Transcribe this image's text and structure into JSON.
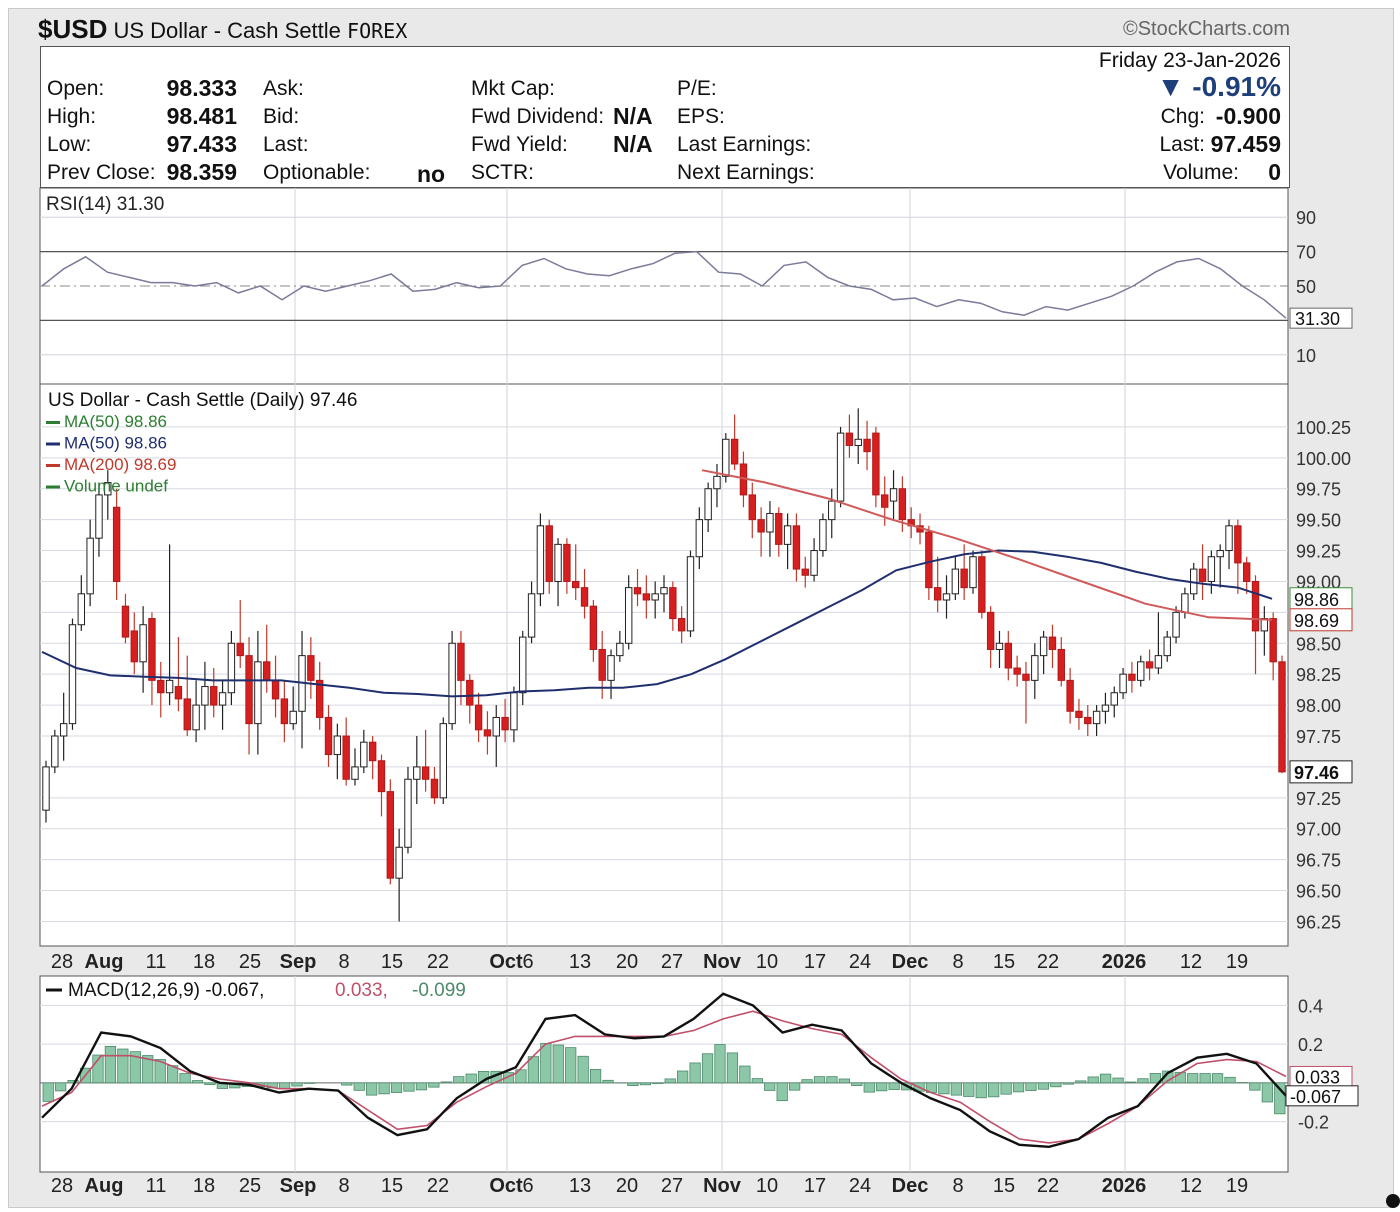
{
  "header": {
    "symbol": "$USD",
    "name": "US Dollar - Cash Settle",
    "exchange": "FOREX",
    "brand": "©StockCharts.com"
  },
  "quote": {
    "date": "Friday  23-Jan-2026",
    "change_pct": "-0.91%",
    "labels": {
      "open": "Open:",
      "high": "High:",
      "low": "Low:",
      "prev_close": "Prev Close:",
      "ask": "Ask:",
      "bid": "Bid:",
      "last": "Last:",
      "optionable": "Optionable:",
      "mkt_cap": "Mkt Cap:",
      "fwd_dividend": "Fwd Dividend:",
      "fwd_yield": "Fwd Yield:",
      "sctr": "SCTR:",
      "pe": "P/E:",
      "eps": "EPS:",
      "last_earnings": "Last Earnings:",
      "next_earnings": "Next Earnings:",
      "chg": "Chg:",
      "last_r": "Last:",
      "volume": "Volume:"
    },
    "values": {
      "open": "98.333",
      "high": "98.481",
      "low": "97.433",
      "prev_close": "98.359",
      "optionable": "no",
      "fwd_dividend": "N/A",
      "fwd_yield": "N/A",
      "chg": "-0.900",
      "last": "97.459",
      "volume": "0"
    }
  },
  "rsi": {
    "label": "RSI(14) 31.30",
    "ticks": [
      "90",
      "70",
      "50",
      "10"
    ],
    "tick_values": [
      90,
      70,
      50,
      10
    ],
    "current": "31.30",
    "current_value": 31.3,
    "color": "#7a7a9a"
  },
  "price": {
    "title": "US Dollar - Cash Settle (Daily) 97.46",
    "legend": [
      {
        "text": "MA(50) 98.86",
        "color": "#2e7d32"
      },
      {
        "text": "MA(50) 98.86",
        "color": "#1f2f6e"
      },
      {
        "text": "MA(200) 98.69",
        "color": "#c0392b"
      },
      {
        "text": "Volume undef",
        "color": "#2e7d32"
      }
    ],
    "ticks": [
      "100.25",
      "100.00",
      "99.75",
      "99.50",
      "99.25",
      "99.00",
      "98.75",
      "98.50",
      "98.25",
      "98.00",
      "97.75",
      "97.50",
      "97.25",
      "97.00",
      "96.75",
      "96.50",
      "96.25"
    ],
    "tick_values": [
      100.25,
      100.0,
      99.75,
      99.5,
      99.25,
      99.0,
      98.75,
      98.5,
      98.25,
      98.0,
      97.75,
      97.5,
      97.25,
      97.0,
      96.75,
      96.5,
      96.25
    ],
    "last_label": "97.46",
    "ma50_label": "98.86",
    "ma200_label": "98.69"
  },
  "macd": {
    "label": "MACD(12,26,9) -0.067,",
    "signal": "0.033,",
    "hist": "-0.099",
    "ticks": [
      "0.4",
      "0.2",
      "-0.2"
    ],
    "tick_values": [
      0.4,
      0.2,
      -0.2
    ],
    "macd_label": "-0.067",
    "signal_label": "0.033"
  },
  "xaxis": {
    "labels": [
      "28",
      "Aug",
      "11",
      "18",
      "25",
      "Sep",
      "8",
      "15",
      "22",
      "Oct",
      "6",
      "13",
      "20",
      "27",
      "Nov",
      "10",
      "17",
      "24",
      "Dec",
      "8",
      "15",
      "22",
      "2026",
      "12",
      "19"
    ],
    "bold": [
      "Aug",
      "Sep",
      "Oct",
      "Nov",
      "Dec",
      "2026"
    ]
  },
  "chart_data": {
    "type": "candlestick",
    "symbol": "$USD",
    "period": "Daily",
    "ylim": [
      96.1,
      100.5
    ],
    "candles": [
      [
        97.15,
        97.55,
        97.05,
        97.5
      ],
      [
        97.5,
        97.8,
        97.45,
        97.75
      ],
      [
        97.75,
        98.1,
        97.55,
        97.85
      ],
      [
        97.85,
        98.7,
        97.8,
        98.65
      ],
      [
        98.65,
        99.05,
        98.6,
        98.9
      ],
      [
        98.9,
        99.5,
        98.8,
        99.35
      ],
      [
        99.35,
        99.8,
        99.2,
        99.7
      ],
      [
        99.7,
        99.9,
        99.5,
        99.8
      ],
      [
        99.6,
        99.75,
        98.85,
        99.0
      ],
      [
        98.8,
        98.9,
        98.5,
        98.55
      ],
      [
        98.6,
        98.75,
        98.25,
        98.35
      ],
      [
        98.35,
        98.8,
        98.1,
        98.65
      ],
      [
        98.7,
        98.75,
        98.0,
        98.2
      ],
      [
        98.2,
        98.35,
        97.9,
        98.1
      ],
      [
        98.1,
        99.3,
        98.0,
        98.2
      ],
      [
        98.15,
        98.55,
        97.95,
        98.05
      ],
      [
        98.05,
        98.4,
        97.75,
        97.8
      ],
      [
        97.8,
        98.2,
        97.7,
        98.0
      ],
      [
        98.0,
        98.35,
        97.8,
        98.15
      ],
      [
        98.15,
        98.3,
        97.9,
        98.0
      ],
      [
        98.0,
        98.2,
        97.8,
        98.1
      ],
      [
        98.1,
        98.6,
        98.0,
        98.5
      ],
      [
        98.5,
        98.85,
        98.3,
        98.4
      ],
      [
        98.4,
        98.55,
        97.6,
        97.85
      ],
      [
        97.85,
        98.6,
        97.6,
        98.35
      ],
      [
        98.35,
        98.65,
        98.1,
        98.2
      ],
      [
        98.2,
        98.4,
        97.9,
        98.05
      ],
      [
        98.05,
        98.2,
        97.7,
        97.85
      ],
      [
        97.85,
        98.15,
        97.8,
        97.95
      ],
      [
        97.95,
        98.6,
        97.65,
        98.4
      ],
      [
        98.4,
        98.55,
        98.05,
        98.2
      ],
      [
        98.2,
        98.35,
        97.8,
        97.9
      ],
      [
        97.9,
        98.0,
        97.5,
        97.6
      ],
      [
        97.6,
        97.85,
        97.4,
        97.75
      ],
      [
        97.75,
        97.9,
        97.35,
        97.4
      ],
      [
        97.4,
        97.65,
        97.35,
        97.5
      ],
      [
        97.5,
        97.8,
        97.45,
        97.7
      ],
      [
        97.7,
        97.75,
        97.4,
        97.55
      ],
      [
        97.55,
        97.6,
        97.1,
        97.3
      ],
      [
        97.3,
        97.4,
        96.55,
        96.6
      ],
      [
        96.6,
        97.0,
        96.25,
        96.85
      ],
      [
        96.85,
        97.5,
        96.8,
        97.4
      ],
      [
        97.4,
        97.75,
        97.2,
        97.5
      ],
      [
        97.5,
        97.8,
        97.3,
        97.4
      ],
      [
        97.4,
        97.5,
        97.2,
        97.25
      ],
      [
        97.25,
        97.9,
        97.2,
        97.85
      ],
      [
        97.85,
        98.6,
        97.8,
        98.5
      ],
      [
        98.5,
        98.6,
        98.0,
        98.2
      ],
      [
        98.2,
        98.25,
        97.85,
        98.0
      ],
      [
        98.0,
        98.1,
        97.7,
        97.8
      ],
      [
        97.8,
        97.95,
        97.6,
        97.75
      ],
      [
        97.75,
        98.0,
        97.5,
        97.9
      ],
      [
        97.9,
        98.05,
        97.7,
        97.8
      ],
      [
        97.8,
        98.15,
        97.7,
        98.1
      ],
      [
        98.1,
        98.6,
        98.0,
        98.55
      ],
      [
        98.55,
        99.0,
        98.5,
        98.9
      ],
      [
        98.9,
        99.55,
        98.8,
        99.45
      ],
      [
        99.45,
        99.5,
        98.9,
        99.0
      ],
      [
        99.0,
        99.35,
        98.8,
        99.3
      ],
      [
        99.3,
        99.35,
        98.9,
        99.0
      ],
      [
        99.0,
        99.3,
        98.85,
        98.95
      ],
      [
        98.95,
        99.1,
        98.7,
        98.8
      ],
      [
        98.8,
        98.85,
        98.35,
        98.45
      ],
      [
        98.45,
        98.6,
        98.05,
        98.2
      ],
      [
        98.2,
        98.45,
        98.05,
        98.4
      ],
      [
        98.4,
        98.6,
        98.35,
        98.5
      ],
      [
        98.5,
        99.05,
        98.45,
        98.95
      ],
      [
        98.95,
        99.1,
        98.8,
        98.9
      ],
      [
        98.9,
        99.05,
        98.7,
        98.85
      ],
      [
        98.85,
        99.0,
        98.7,
        98.9
      ],
      [
        98.9,
        99.05,
        98.75,
        98.95
      ],
      [
        98.95,
        99.0,
        98.6,
        98.7
      ],
      [
        98.7,
        98.8,
        98.5,
        98.6
      ],
      [
        98.6,
        99.25,
        98.55,
        99.2
      ],
      [
        99.2,
        99.6,
        99.1,
        99.5
      ],
      [
        99.5,
        99.8,
        99.4,
        99.75
      ],
      [
        99.75,
        99.95,
        99.6,
        99.85
      ],
      [
        99.85,
        100.2,
        99.8,
        100.15
      ],
      [
        100.15,
        100.35,
        99.9,
        99.95
      ],
      [
        99.95,
        100.05,
        99.6,
        99.7
      ],
      [
        99.7,
        99.8,
        99.35,
        99.5
      ],
      [
        99.5,
        99.6,
        99.2,
        99.4
      ],
      [
        99.4,
        99.65,
        99.2,
        99.55
      ],
      [
        99.55,
        99.6,
        99.2,
        99.3
      ],
      [
        99.3,
        99.55,
        99.1,
        99.45
      ],
      [
        99.45,
        99.55,
        99.0,
        99.1
      ],
      [
        99.1,
        99.2,
        98.95,
        99.05
      ],
      [
        99.05,
        99.35,
        99.0,
        99.25
      ],
      [
        99.25,
        99.55,
        99.2,
        99.5
      ],
      [
        99.5,
        99.75,
        99.35,
        99.65
      ],
      [
        99.65,
        100.25,
        99.6,
        100.2
      ],
      [
        100.2,
        100.35,
        100.0,
        100.1
      ],
      [
        100.1,
        100.4,
        99.95,
        100.15
      ],
      [
        100.15,
        100.3,
        99.9,
        100.05
      ],
      [
        100.2,
        100.25,
        99.6,
        99.7
      ],
      [
        99.7,
        99.85,
        99.45,
        99.6
      ],
      [
        99.65,
        99.9,
        99.5,
        99.75
      ],
      [
        99.75,
        99.85,
        99.4,
        99.5
      ],
      [
        99.5,
        99.6,
        99.35,
        99.45
      ],
      [
        99.45,
        99.55,
        99.3,
        99.4
      ],
      [
        99.4,
        99.45,
        98.85,
        98.95
      ],
      [
        98.95,
        99.2,
        98.75,
        98.85
      ],
      [
        98.85,
        99.05,
        98.7,
        98.9
      ],
      [
        98.9,
        99.2,
        98.85,
        99.1
      ],
      [
        99.1,
        99.3,
        98.85,
        98.95
      ],
      [
        98.95,
        99.25,
        98.9,
        99.2
      ],
      [
        99.2,
        99.25,
        98.7,
        98.75
      ],
      [
        98.75,
        98.8,
        98.3,
        98.45
      ],
      [
        98.45,
        98.6,
        98.3,
        98.5
      ],
      [
        98.5,
        98.6,
        98.2,
        98.3
      ],
      [
        98.3,
        98.4,
        98.15,
        98.25
      ],
      [
        98.25,
        98.35,
        97.85,
        98.2
      ],
      [
        98.2,
        98.5,
        98.05,
        98.4
      ],
      [
        98.4,
        98.6,
        98.25,
        98.55
      ],
      [
        98.55,
        98.65,
        98.3,
        98.45
      ],
      [
        98.45,
        98.55,
        98.15,
        98.2
      ],
      [
        98.2,
        98.3,
        97.85,
        97.95
      ],
      [
        97.95,
        98.05,
        97.8,
        97.9
      ],
      [
        97.9,
        98.0,
        97.75,
        97.85
      ],
      [
        97.85,
        98.0,
        97.75,
        97.95
      ],
      [
        97.95,
        98.1,
        97.85,
        98.0
      ],
      [
        98.0,
        98.15,
        97.9,
        98.1
      ],
      [
        98.1,
        98.3,
        98.05,
        98.25
      ],
      [
        98.25,
        98.35,
        98.1,
        98.2
      ],
      [
        98.2,
        98.4,
        98.15,
        98.35
      ],
      [
        98.35,
        98.45,
        98.2,
        98.3
      ],
      [
        98.3,
        98.75,
        98.25,
        98.4
      ],
      [
        98.4,
        98.6,
        98.35,
        98.55
      ],
      [
        98.55,
        98.8,
        98.5,
        98.75
      ],
      [
        98.75,
        98.95,
        98.7,
        98.9
      ],
      [
        98.9,
        99.15,
        98.85,
        99.1
      ],
      [
        99.1,
        99.3,
        98.85,
        99.0
      ],
      [
        99.0,
        99.25,
        98.9,
        99.2
      ],
      [
        99.2,
        99.3,
        98.95,
        99.25
      ],
      [
        99.25,
        99.5,
        99.1,
        99.45
      ],
      [
        99.45,
        99.5,
        98.9,
        99.15
      ],
      [
        99.15,
        99.2,
        98.9,
        99.0
      ],
      [
        99.0,
        99.05,
        98.25,
        98.6
      ],
      [
        98.6,
        98.8,
        98.4,
        98.7
      ],
      [
        98.7,
        98.75,
        98.2,
        98.35
      ],
      [
        98.35,
        98.4,
        97.45,
        97.46
      ]
    ],
    "ma50": [
      98.43,
      98.3,
      98.24,
      98.23,
      98.22,
      98.2,
      98.2,
      98.2,
      98.17,
      98.14,
      98.1,
      98.09,
      98.07,
      98.08,
      98.11,
      98.12,
      98.14,
      98.14,
      98.17,
      98.25,
      98.37,
      98.51,
      98.65,
      98.79,
      98.93,
      99.09,
      99.16,
      99.22,
      99.25,
      99.24,
      99.2,
      99.15,
      99.08,
      99.02,
      98.98,
      98.95,
      98.86
    ],
    "ma200": [
      99.9,
      99.8,
      99.67,
      99.5,
      99.35,
      99.18,
      99.0,
      98.82,
      98.71,
      98.69
    ],
    "rsi": [
      50,
      60,
      67,
      58,
      55,
      52,
      52,
      50,
      52,
      46,
      50,
      42,
      50,
      47,
      50,
      53,
      57,
      47,
      48,
      52,
      49,
      50,
      62,
      66,
      60,
      57,
      56,
      60,
      63,
      69,
      70,
      58,
      57,
      50,
      62,
      64,
      55,
      50,
      48,
      42,
      43,
      38,
      42,
      40,
      35,
      33,
      38,
      36,
      40,
      44,
      50,
      58,
      64,
      66,
      60,
      50,
      42,
      31.3
    ],
    "macd": [
      -0.18,
      -0.03,
      0.26,
      0.24,
      0.18,
      0.06,
      0.0,
      -0.01,
      -0.05,
      -0.03,
      -0.04,
      -0.18,
      -0.27,
      -0.24,
      -0.08,
      0.02,
      0.08,
      0.33,
      0.35,
      0.25,
      0.23,
      0.24,
      0.33,
      0.46,
      0.4,
      0.26,
      0.3,
      0.27,
      0.1,
      0.0,
      -0.08,
      -0.14,
      -0.25,
      -0.32,
      -0.33,
      -0.29,
      -0.18,
      -0.12,
      0.05,
      0.13,
      0.15,
      0.1,
      -0.067
    ],
    "signal": [
      -0.12,
      -0.05,
      0.14,
      0.14,
      0.11,
      0.05,
      0.02,
      0.0,
      -0.03,
      -0.03,
      -0.04,
      -0.14,
      -0.24,
      -0.22,
      -0.1,
      -0.02,
      0.05,
      0.2,
      0.24,
      0.24,
      0.24,
      0.24,
      0.27,
      0.33,
      0.37,
      0.32,
      0.28,
      0.25,
      0.13,
      0.02,
      -0.05,
      -0.1,
      -0.2,
      -0.29,
      -0.31,
      -0.29,
      -0.21,
      -0.12,
      0.01,
      0.1,
      0.12,
      0.11,
      0.033
    ]
  }
}
